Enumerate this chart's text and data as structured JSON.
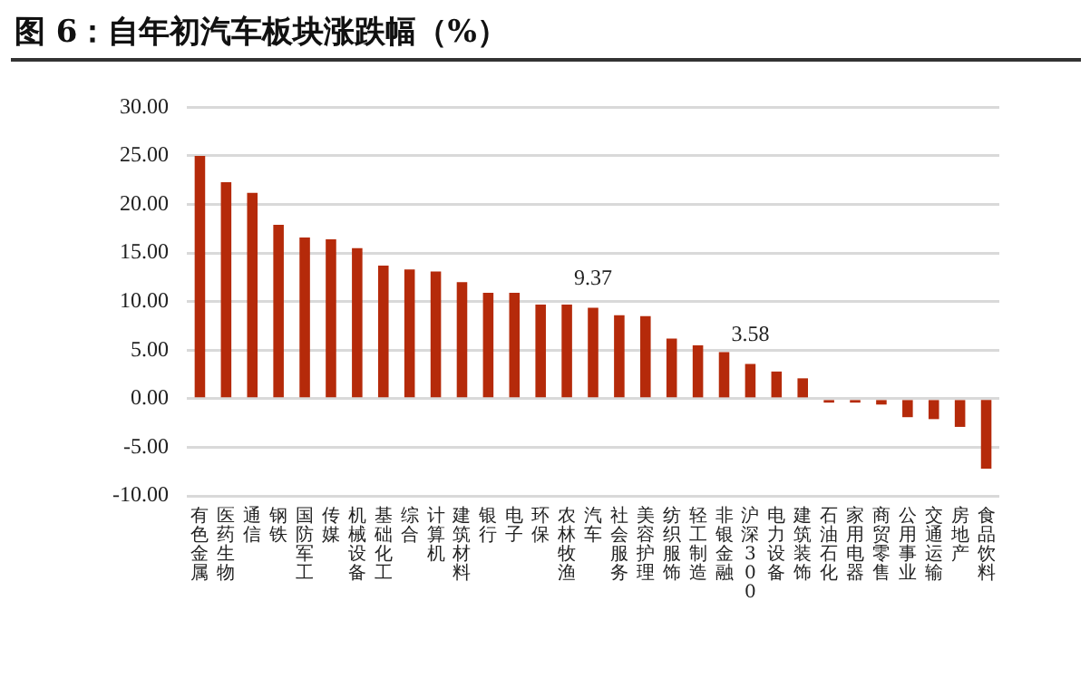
{
  "chart_data": {
    "type": "bar",
    "title": "图 6：自年初汽车板块涨跌幅（%）",
    "categories": [
      "有色金属",
      "医药生物",
      "通信",
      "钢铁",
      "国防军工",
      "传媒",
      "机械设备",
      "基础化工",
      "综合",
      "计算机",
      "建筑材料",
      "银行",
      "电子",
      "环保",
      "农林牧渔",
      "汽车",
      "社会服务",
      "美容护理",
      "纺织服饰",
      "轻工制造",
      "非银金融",
      "沪深300",
      "电力设备",
      "建筑装饰",
      "石油石化",
      "家用电器",
      "商贸零售",
      "公用事业",
      "交通运输",
      "房地产",
      "食品饮料"
    ],
    "values": [
      25.0,
      22.3,
      21.2,
      17.9,
      16.6,
      16.4,
      15.5,
      13.7,
      13.3,
      13.1,
      12.0,
      10.9,
      10.9,
      9.7,
      9.7,
      9.37,
      8.6,
      8.5,
      6.2,
      5.5,
      4.8,
      3.58,
      2.8,
      2.1,
      -0.4,
      -0.4,
      -0.6,
      -1.9,
      -2.1,
      -2.9,
      -7.2
    ],
    "value_labels": [
      null,
      null,
      null,
      null,
      null,
      null,
      null,
      null,
      null,
      null,
      null,
      null,
      null,
      null,
      null,
      "9.37",
      null,
      null,
      null,
      null,
      null,
      "3.58",
      null,
      null,
      null,
      null,
      null,
      null,
      null,
      null,
      null
    ],
    "color": "#b52a0a",
    "ylim": [
      -10,
      30
    ],
    "yticks": [
      {
        "value": -10,
        "label": "-10.00"
      },
      {
        "value": -5,
        "label": "-5.00"
      },
      {
        "value": 0,
        "label": "0.00"
      },
      {
        "value": 5,
        "label": "5.00"
      },
      {
        "value": 10,
        "label": "10.00"
      },
      {
        "value": 15,
        "label": "15.00"
      },
      {
        "value": 20,
        "label": "20.00"
      },
      {
        "value": 25,
        "label": "25.00"
      },
      {
        "value": 30,
        "label": "30.00"
      }
    ],
    "grid": "y",
    "legend": false
  }
}
